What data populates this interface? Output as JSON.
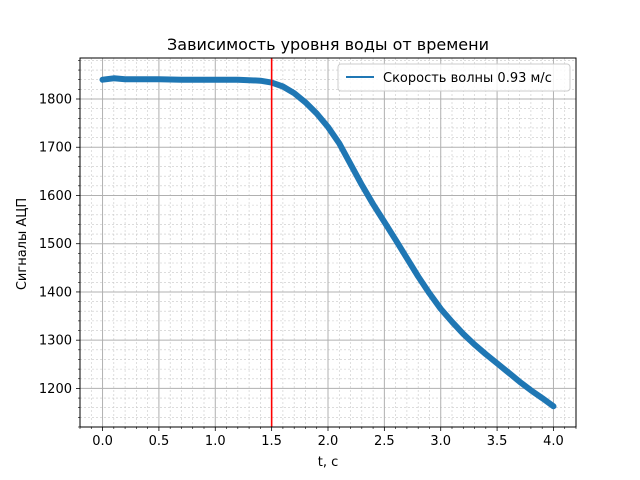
{
  "chart_data": {
    "type": "line",
    "title": "Зависимость уровня воды от времени",
    "xlabel": "t, c",
    "ylabel": "Сигналы АЦП",
    "xlim": [
      -0.2,
      4.2
    ],
    "ylim": [
      1120,
      1885
    ],
    "x_ticks": [
      0.0,
      0.5,
      1.0,
      1.5,
      2.0,
      2.5,
      3.0,
      3.5,
      4.0
    ],
    "x_tick_labels": [
      "0.0",
      "0.5",
      "1.0",
      "1.5",
      "2.0",
      "2.5",
      "3.0",
      "3.5",
      "4.0"
    ],
    "y_ticks": [
      1200,
      1300,
      1400,
      1500,
      1600,
      1700,
      1800
    ],
    "y_tick_labels": [
      "1200",
      "1300",
      "1400",
      "1500",
      "1600",
      "1700",
      "1800"
    ],
    "grid": "major and minor",
    "legend_position": "top-right",
    "series": [
      {
        "name": "Скорость волны 0.93 м/с",
        "color": "#1f77b4",
        "x": [
          0.0,
          0.1,
          0.2,
          0.3,
          0.5,
          0.7,
          1.0,
          1.2,
          1.4,
          1.5,
          1.6,
          1.7,
          1.8,
          1.9,
          2.0,
          2.1,
          2.2,
          2.3,
          2.4,
          2.5,
          2.6,
          2.7,
          2.8,
          2.9,
          3.0,
          3.1,
          3.2,
          3.3,
          3.4,
          3.5,
          3.6,
          3.7,
          3.8,
          3.9,
          4.0
        ],
        "y": [
          1840,
          1843,
          1841,
          1841,
          1841,
          1840,
          1840,
          1840,
          1838,
          1834,
          1826,
          1812,
          1793,
          1770,
          1742,
          1708,
          1665,
          1622,
          1582,
          1545,
          1508,
          1470,
          1432,
          1397,
          1365,
          1338,
          1313,
          1291,
          1271,
          1252,
          1233,
          1214,
          1196,
          1180,
          1163
        ]
      }
    ],
    "vertical_line": {
      "x": 1.5,
      "color": "#ff0000"
    }
  }
}
